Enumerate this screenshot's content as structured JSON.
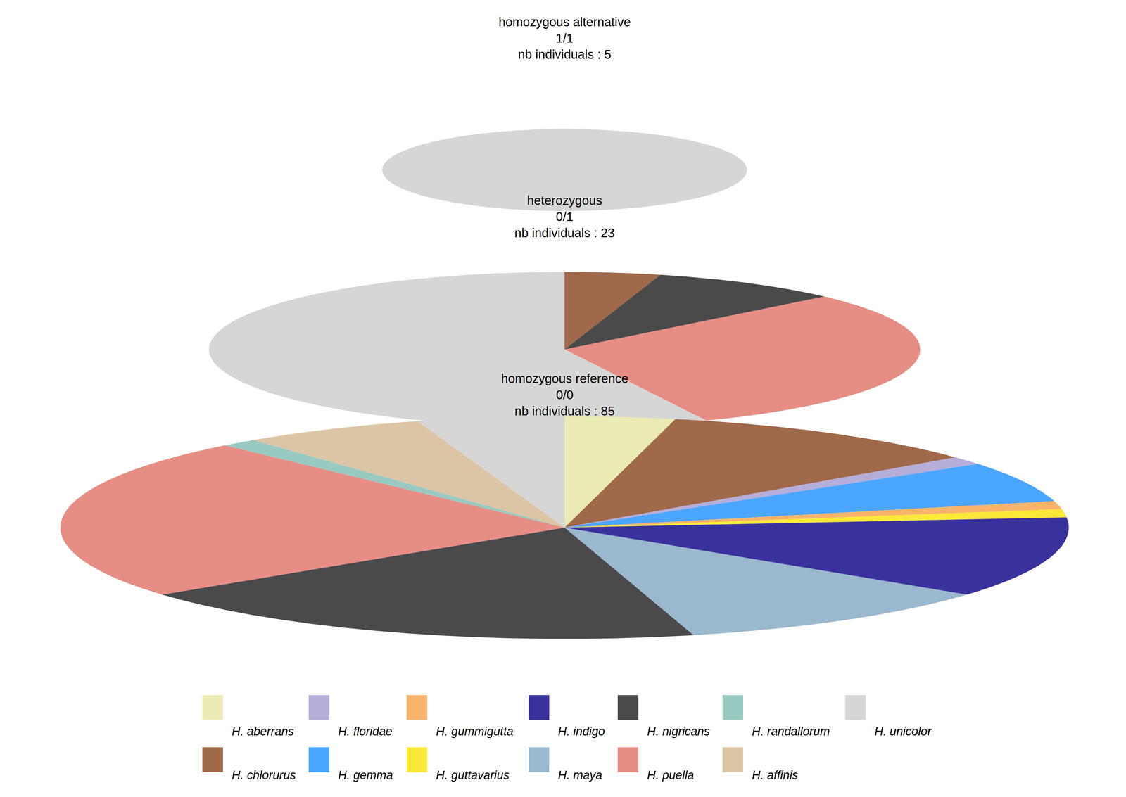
{
  "chart_data": {
    "type": "pie",
    "legend": "bottom",
    "categories": [
      "homozygous alternative",
      "heterozygous",
      "homozygous reference"
    ],
    "genotypes": [
      "1/1",
      "0/1",
      "0/0"
    ],
    "totals_text": [
      "nb individuals : 5",
      "nb individuals : 23",
      "nb individuals : 85"
    ],
    "series": [
      {
        "name": "H. aberrans",
        "color": "#EAEAB5",
        "values": [
          0,
          0,
          3
        ]
      },
      {
        "name": "H. chlorurus",
        "color": "#A0694A",
        "values": [
          0,
          1,
          9
        ]
      },
      {
        "name": "H. floridae",
        "color": "#B5AED9",
        "values": [
          0,
          0,
          1
        ]
      },
      {
        "name": "H. gemma",
        "color": "#4BA6FF",
        "values": [
          0,
          0,
          5
        ]
      },
      {
        "name": "H. gummigutta",
        "color": "#F9B36B",
        "values": [
          0,
          0,
          1
        ]
      },
      {
        "name": "H. guttavarius",
        "color": "#FBE93A",
        "values": [
          0,
          0,
          1
        ]
      },
      {
        "name": "H. indigo",
        "color": "#3A329C",
        "values": [
          0,
          0,
          10
        ]
      },
      {
        "name": "H. maya",
        "color": "#9AB8CE",
        "values": [
          0,
          0,
          9
        ]
      },
      {
        "name": "H. nigricans",
        "color": "#4A4A4A",
        "values": [
          0,
          2,
          16
        ]
      },
      {
        "name": "H. puella",
        "color": "#E68E84",
        "values": [
          0,
          7,
          20
        ]
      },
      {
        "name": "H. randallorum",
        "color": "#98CAC1",
        "values": [
          0,
          0,
          1
        ]
      },
      {
        "name": "H. affinis",
        "color": "#DCC5A5",
        "values": [
          0,
          0,
          5
        ]
      },
      {
        "name": "H. unicolor",
        "color": "#D6D6D6",
        "values": [
          5,
          13,
          4
        ]
      }
    ]
  }
}
